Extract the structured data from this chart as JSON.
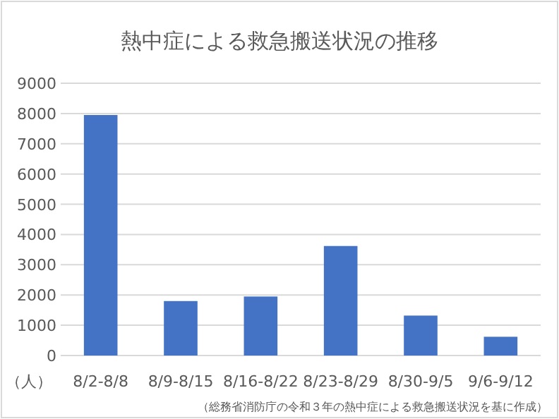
{
  "chart_data": {
    "type": "bar",
    "title": "熱中症による救急搬送状況の推移",
    "ylabel": "（人）",
    "categories": [
      "8/2-8/8",
      "8/9-8/15",
      "8/16-8/22",
      "8/23-8/29",
      "8/30-9/5",
      "9/6-9/12"
    ],
    "values": [
      7950,
      1800,
      1950,
      3620,
      1320,
      620
    ],
    "color": "#4472c4",
    "ylim": [
      0,
      9000
    ],
    "yticks": [
      0,
      1000,
      2000,
      3000,
      4000,
      5000,
      6000,
      7000,
      8000,
      9000
    ],
    "grid": "y",
    "annotations": [
      "（総務省消防庁の令和３年の熱中症による救急搬送状況を基に作成）"
    ]
  }
}
